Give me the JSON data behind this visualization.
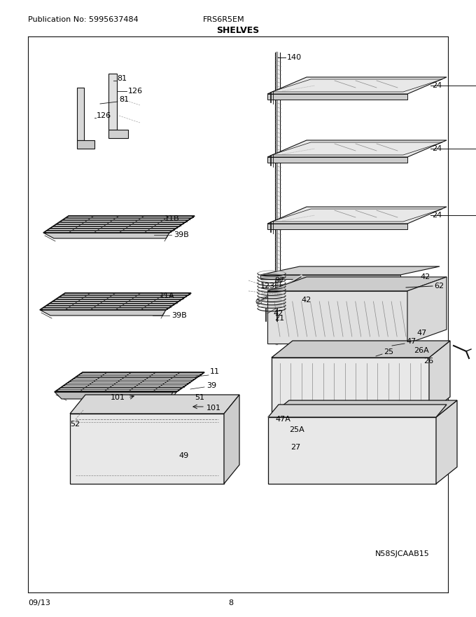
{
  "title": "SHELVES",
  "pub_no": "Publication No: 5995637484",
  "model": "FRS6R5EM",
  "date": "09/13",
  "page": "8",
  "watermark": "N58SJCAAB15",
  "bg_color": "#ffffff"
}
